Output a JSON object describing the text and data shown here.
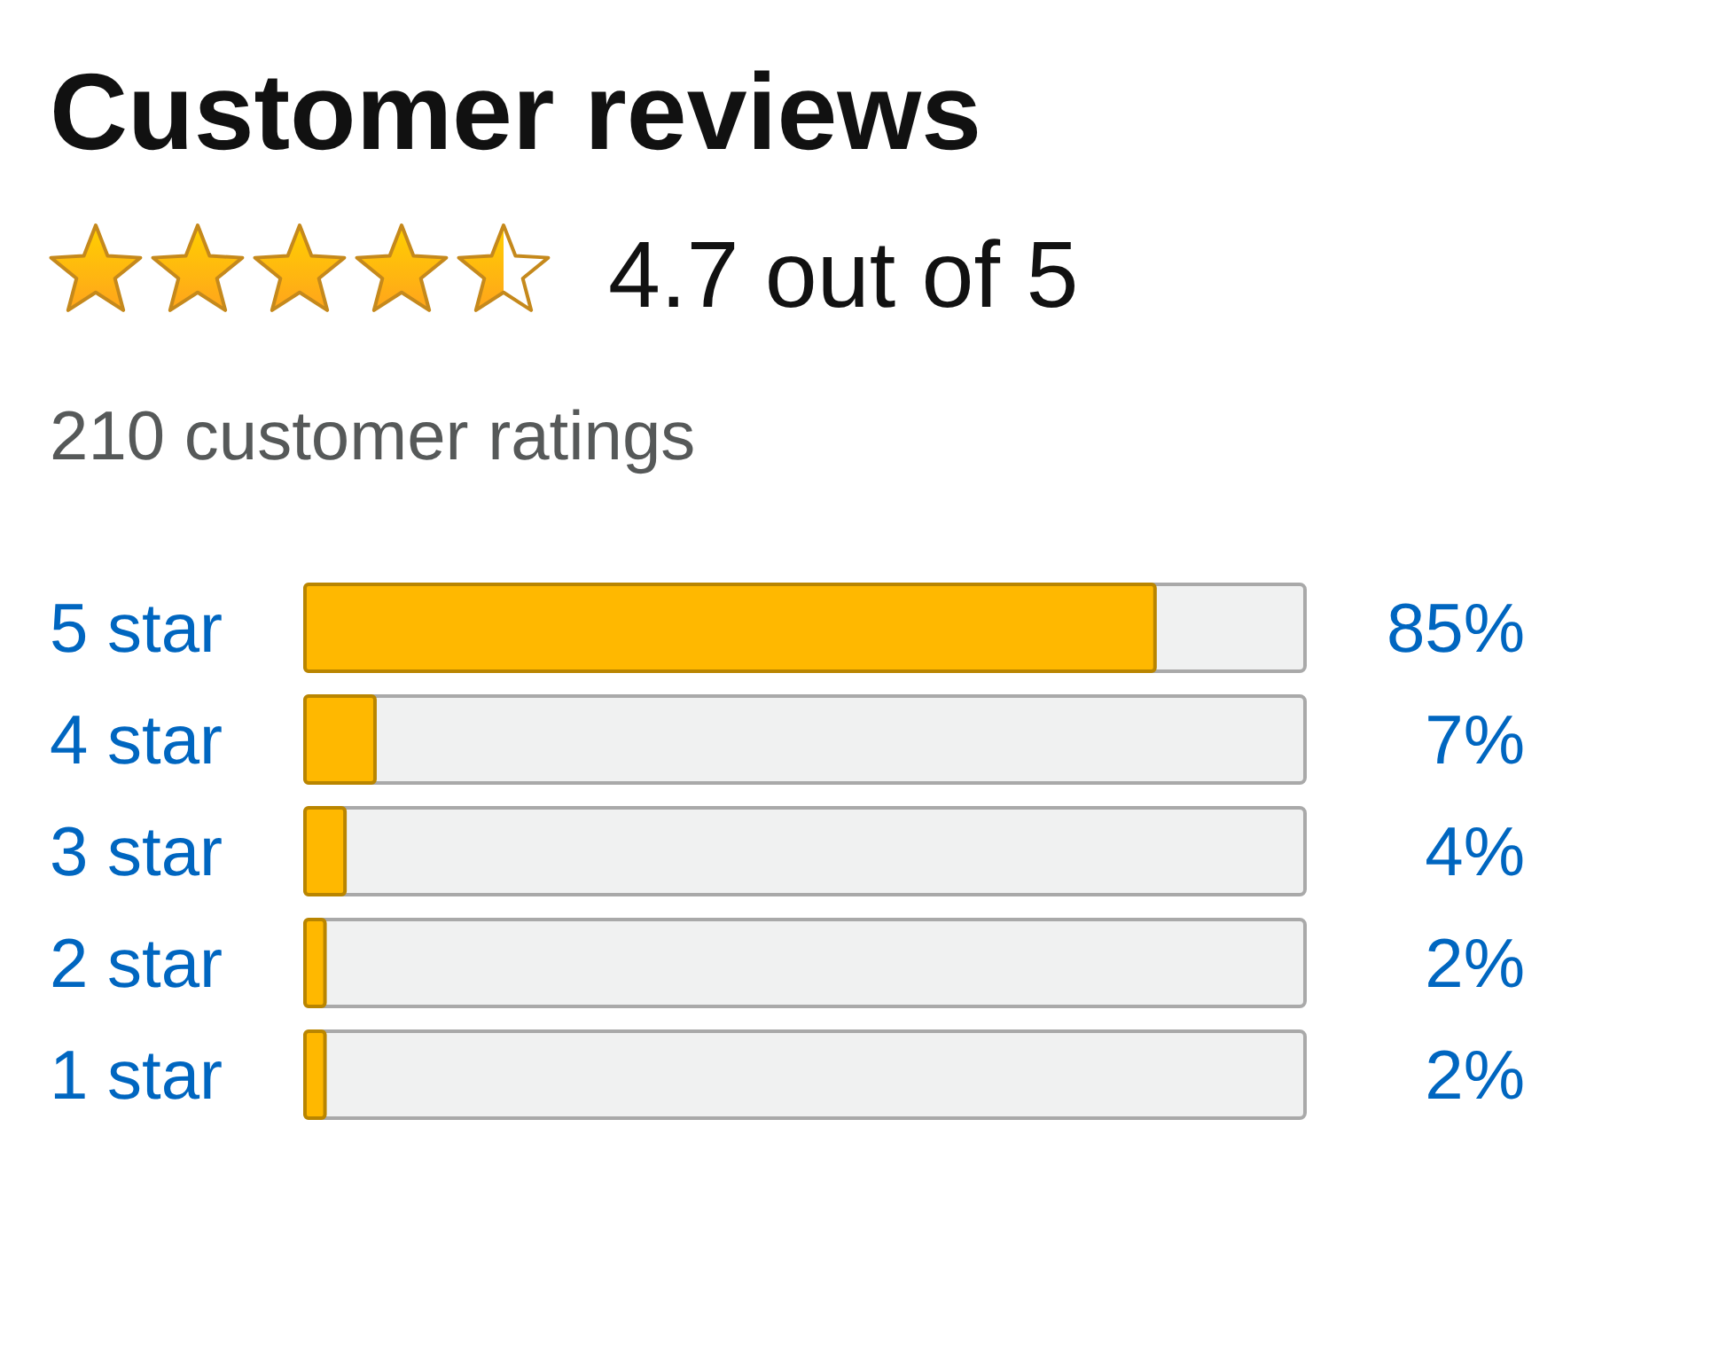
{
  "chart_data": {
    "type": "bar",
    "orientation": "horizontal",
    "title": "Customer reviews",
    "subtitle": "4.7 out of 5",
    "annotations": [
      "210 customer ratings"
    ],
    "categories": [
      "5 star",
      "4 star",
      "3 star",
      "2 star",
      "1 star"
    ],
    "values": [
      85,
      7,
      4,
      2,
      2
    ],
    "value_labels": [
      "85%",
      "7%",
      "4%",
      "2%",
      "2%"
    ],
    "color": "#ffb800",
    "xlim": [
      0,
      100
    ],
    "tick_labels": "y"
  }
}
